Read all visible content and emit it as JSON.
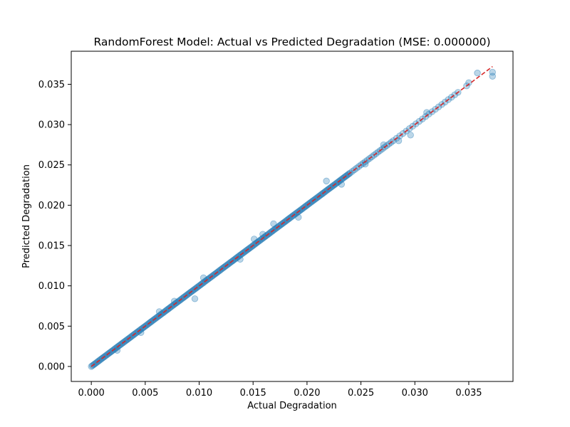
{
  "chart_data": {
    "type": "scatter",
    "title": "RandomForest Model: Actual vs Predicted Degradation (MSE: 0.000000)",
    "xlabel": "Actual Degradation",
    "ylabel": "Predicted Degradation",
    "xlim": [
      -0.00186,
      0.0391
    ],
    "ylim": [
      -0.00186,
      0.0391
    ],
    "xticks": [
      "0.000",
      "0.005",
      "0.010",
      "0.015",
      "0.020",
      "0.025",
      "0.030",
      "0.035"
    ],
    "yticks": [
      "0.000",
      "0.005",
      "0.010",
      "0.015",
      "0.020",
      "0.025",
      "0.030",
      "0.035"
    ],
    "grid": false,
    "reference_line": {
      "from": [
        0.0,
        0.0
      ],
      "to": [
        0.0372,
        0.0372
      ],
      "style": "dashed",
      "color": "#d62728"
    },
    "marker_color": "#1f77b4",
    "marker_alpha": 0.3,
    "series": [
      {
        "x": [
          0.0,
          0.0001,
          0.0002,
          0.0003,
          0.0004,
          0.0005,
          0.0006,
          0.0007,
          0.0008,
          0.0009,
          0.001,
          0.0011,
          0.0012,
          0.0013,
          0.0014,
          0.0015,
          0.0016,
          0.0017,
          0.0018,
          0.0019,
          0.002,
          0.0021,
          0.0022,
          0.0023,
          0.0024,
          0.0025,
          0.0026,
          0.0027,
          0.0028,
          0.0029,
          0.003,
          0.0031,
          0.0032,
          0.0033,
          0.0034,
          0.0035,
          0.0036,
          0.0037,
          0.0038,
          0.0039,
          0.004,
          0.0041,
          0.0042,
          0.0043,
          0.0044,
          0.0045,
          0.0046,
          0.0047,
          0.0048,
          0.0049,
          0.005,
          0.0051,
          0.0052,
          0.0053,
          0.0054,
          0.0055,
          0.0056,
          0.0057,
          0.0058,
          0.0059,
          0.006,
          0.0061,
          0.0062,
          0.0063,
          0.0064,
          0.0065,
          0.0066,
          0.0067,
          0.0068,
          0.0069,
          0.007,
          0.0071,
          0.0072,
          0.0073,
          0.0074,
          0.0075,
          0.0076,
          0.0077,
          0.0078,
          0.0079,
          0.008,
          0.0081,
          0.0082,
          0.0083,
          0.0084,
          0.0085,
          0.0086,
          0.0087,
          0.0088,
          0.0089,
          0.009,
          0.0091,
          0.0092,
          0.0093,
          0.0094,
          0.0095,
          0.0096,
          0.0097,
          0.0098,
          0.0099,
          0.01,
          0.0101,
          0.0102,
          0.0103,
          0.0104,
          0.0105,
          0.0106,
          0.0107,
          0.0108,
          0.0109,
          0.011,
          0.0111,
          0.0112,
          0.0113,
          0.0114,
          0.0115,
          0.0116,
          0.0117,
          0.0118,
          0.0119,
          0.012,
          0.0121,
          0.0122,
          0.0123,
          0.0124,
          0.0125,
          0.0126,
          0.0127,
          0.0128,
          0.0129,
          0.013,
          0.0131,
          0.0132,
          0.0133,
          0.0134,
          0.0135,
          0.0136,
          0.0137,
          0.0138,
          0.0139,
          0.014,
          0.0141,
          0.0142,
          0.0143,
          0.0144,
          0.0145,
          0.0146,
          0.0147,
          0.0148,
          0.0149,
          0.015,
          0.0151,
          0.0152,
          0.0153,
          0.0154,
          0.0155,
          0.0156,
          0.0157,
          0.0158,
          0.0159,
          0.016,
          0.0161,
          0.0162,
          0.0163,
          0.0164,
          0.0165,
          0.0166,
          0.0167,
          0.0168,
          0.0169,
          0.017,
          0.0171,
          0.0172,
          0.0173,
          0.0174,
          0.0175,
          0.0176,
          0.0177,
          0.0178,
          0.0179,
          0.018,
          0.0181,
          0.0182,
          0.0183,
          0.0184,
          0.0185,
          0.0186,
          0.0187,
          0.0188,
          0.0189,
          0.019,
          0.0191,
          0.0192,
          0.0193,
          0.0194,
          0.0195,
          0.0196,
          0.0197,
          0.0198,
          0.0199,
          0.02,
          0.0201,
          0.0202,
          0.0203,
          0.0204,
          0.0205,
          0.0206,
          0.0207,
          0.0208,
          0.0209,
          0.021,
          0.0211,
          0.0212,
          0.0213,
          0.0214,
          0.0215,
          0.0216,
          0.0217,
          0.0218,
          0.0219,
          0.022,
          0.0221,
          0.0222,
          0.0223,
          0.0224,
          0.0225,
          0.0226,
          0.0227,
          0.0228,
          0.0229,
          0.023,
          0.0231,
          0.0232,
          0.0233,
          0.0234,
          0.0235,
          0.0236,
          0.0237,
          0.0238,
          0.0239,
          0.024,
          0.0242,
          0.0244,
          0.0246,
          0.0248,
          0.025,
          0.0252,
          0.0254,
          0.0256,
          0.0258,
          0.026,
          0.0262,
          0.0264,
          0.0266,
          0.0268,
          0.027,
          0.0272,
          0.0274,
          0.0276,
          0.0278,
          0.028,
          0.0283,
          0.0286,
          0.0289,
          0.0292,
          0.0295,
          0.0298,
          0.0301,
          0.0304,
          0.0307,
          0.031,
          0.0313,
          0.0316,
          0.0319,
          0.0322,
          0.0325,
          0.0328,
          0.0331,
          0.0334,
          0.0337,
          0.034,
          0.0348,
          0.035,
          0.0358,
          0.0372,
          0.0372,
          0.0024,
          0.0046,
          0.0063,
          0.0077,
          0.0096,
          0.0104,
          0.0138,
          0.0151,
          0.0159,
          0.0169,
          0.0192,
          0.0218,
          0.0232,
          0.0254,
          0.0271,
          0.0285,
          0.0296,
          0.0311
        ],
        "y": [
          0.0,
          0.0001,
          0.0002,
          0.0003,
          0.0004,
          0.0005,
          0.0006,
          0.0007,
          0.0008,
          0.0009,
          0.001,
          0.0011,
          0.0012,
          0.0013,
          0.0014,
          0.0015,
          0.0016,
          0.0017,
          0.0018,
          0.0019,
          0.002,
          0.0021,
          0.0022,
          0.0023,
          0.0024,
          0.0025,
          0.0026,
          0.0027,
          0.0028,
          0.0029,
          0.003,
          0.0031,
          0.0032,
          0.0033,
          0.0034,
          0.0035,
          0.0036,
          0.0037,
          0.0038,
          0.0039,
          0.004,
          0.0041,
          0.0042,
          0.0043,
          0.0044,
          0.0045,
          0.0046,
          0.0047,
          0.0048,
          0.0049,
          0.005,
          0.0051,
          0.0052,
          0.0053,
          0.0054,
          0.0055,
          0.0056,
          0.0057,
          0.0058,
          0.0059,
          0.006,
          0.0061,
          0.0062,
          0.0063,
          0.0064,
          0.0065,
          0.0066,
          0.0067,
          0.0068,
          0.0069,
          0.007,
          0.0071,
          0.0072,
          0.0073,
          0.0074,
          0.0075,
          0.0076,
          0.0077,
          0.0078,
          0.0079,
          0.008,
          0.0081,
          0.0082,
          0.0083,
          0.0084,
          0.0085,
          0.0086,
          0.0087,
          0.0088,
          0.0089,
          0.009,
          0.0091,
          0.0092,
          0.0093,
          0.0094,
          0.0095,
          0.0096,
          0.0097,
          0.0098,
          0.0099,
          0.01,
          0.0101,
          0.0102,
          0.0103,
          0.0104,
          0.0105,
          0.0106,
          0.0107,
          0.0108,
          0.0109,
          0.011,
          0.0111,
          0.0112,
          0.0113,
          0.0114,
          0.0115,
          0.0116,
          0.0117,
          0.0118,
          0.0119,
          0.012,
          0.0121,
          0.0122,
          0.0123,
          0.0124,
          0.0125,
          0.0126,
          0.0127,
          0.0128,
          0.0129,
          0.013,
          0.0131,
          0.0132,
          0.0133,
          0.0134,
          0.0135,
          0.0136,
          0.0137,
          0.0138,
          0.0139,
          0.014,
          0.0141,
          0.0142,
          0.0143,
          0.0144,
          0.0145,
          0.0146,
          0.0147,
          0.0148,
          0.0149,
          0.015,
          0.0151,
          0.0152,
          0.0153,
          0.0154,
          0.0155,
          0.0156,
          0.0157,
          0.0158,
          0.0159,
          0.016,
          0.0161,
          0.0162,
          0.0163,
          0.0164,
          0.0165,
          0.0166,
          0.0167,
          0.0168,
          0.0169,
          0.017,
          0.0171,
          0.0172,
          0.0173,
          0.0174,
          0.0175,
          0.0176,
          0.0177,
          0.0178,
          0.0179,
          0.018,
          0.0181,
          0.0182,
          0.0183,
          0.0184,
          0.0185,
          0.0186,
          0.0187,
          0.0188,
          0.0189,
          0.019,
          0.0191,
          0.0192,
          0.0193,
          0.0194,
          0.0195,
          0.0196,
          0.0197,
          0.0198,
          0.0199,
          0.02,
          0.0201,
          0.0202,
          0.0203,
          0.0204,
          0.0205,
          0.0206,
          0.0207,
          0.0208,
          0.0209,
          0.021,
          0.0211,
          0.0212,
          0.0213,
          0.0214,
          0.0215,
          0.0216,
          0.0217,
          0.0218,
          0.0219,
          0.022,
          0.0221,
          0.0222,
          0.0223,
          0.0224,
          0.0225,
          0.0226,
          0.0227,
          0.0228,
          0.0229,
          0.023,
          0.0231,
          0.0232,
          0.0233,
          0.0234,
          0.0235,
          0.0236,
          0.0237,
          0.0238,
          0.0239,
          0.024,
          0.0242,
          0.0244,
          0.0246,
          0.0248,
          0.025,
          0.0252,
          0.0254,
          0.0256,
          0.0258,
          0.026,
          0.0262,
          0.0264,
          0.0266,
          0.0268,
          0.027,
          0.0272,
          0.0274,
          0.0276,
          0.0278,
          0.028,
          0.0283,
          0.0286,
          0.0289,
          0.0292,
          0.0295,
          0.0298,
          0.0301,
          0.0304,
          0.0307,
          0.031,
          0.0313,
          0.0316,
          0.0319,
          0.0322,
          0.0325,
          0.0328,
          0.0331,
          0.0334,
          0.0337,
          0.034,
          0.0348,
          0.0352,
          0.0364,
          0.0365,
          0.036,
          0.002,
          0.0042,
          0.0068,
          0.0081,
          0.0084,
          0.011,
          0.0133,
          0.0158,
          0.0164,
          0.0177,
          0.0185,
          0.023,
          0.0226,
          0.0251,
          0.0275,
          0.028,
          0.0287,
          0.0315
        ]
      }
    ]
  }
}
